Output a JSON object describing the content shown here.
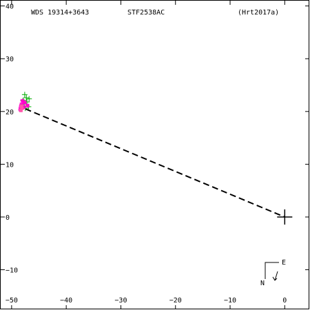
{
  "header": {
    "wds_id": "WDS 19314+3643",
    "discoverer": "STF2538AC",
    "reference": "(Hrt2017a)"
  },
  "compass": {
    "east_label": "E",
    "north_label": "N"
  },
  "colors": {
    "axis": "#000000",
    "orbit_line": "#000000",
    "observations_green": "#00aa00",
    "observations_magenta": "#ff00cc",
    "observations_pink": "#ff55aa",
    "primary_marker": "#000000"
  },
  "chart_data": {
    "type": "scatter",
    "title": "",
    "xlabel": "",
    "ylabel": "",
    "xlim": [
      -52,
      4.5
    ],
    "ylim": [
      -17.5,
      41
    ],
    "x_ticks": [
      -50,
      -40,
      -30,
      -20,
      -10,
      0
    ],
    "y_ticks": [
      -10,
      0,
      10,
      20,
      30,
      40
    ],
    "grid": false,
    "primary": {
      "x": 0,
      "y": 0,
      "marker": "plus"
    },
    "linear_fit": {
      "from": [
        -47.5,
        20.5
      ],
      "to": [
        0,
        0
      ],
      "style": "dashed"
    },
    "series": [
      {
        "marker": "plus",
        "color": "#00aa00",
        "points": [
          [
            -47.6,
            23.2
          ],
          [
            -47.3,
            22.6
          ],
          [
            -47.9,
            22.1
          ],
          [
            -47.2,
            21.8
          ],
          [
            -47.7,
            21.4
          ],
          [
            -46.9,
            20.9
          ],
          [
            -47.5,
            20.6
          ],
          [
            -46.8,
            22.4
          ]
        ]
      },
      {
        "marker": "asterisk",
        "color": "#ff00cc",
        "points": [
          [
            -48.2,
            21.3
          ],
          [
            -47.8,
            20.8
          ],
          [
            -48.4,
            20.4
          ],
          [
            -47.6,
            21.7
          ],
          [
            -48.0,
            22.0
          ],
          [
            -47.1,
            21.1
          ],
          [
            -48.3,
            20.9
          ]
        ]
      },
      {
        "marker": "square",
        "color": "#ff55aa",
        "points": [
          [
            -48.3,
            20.2
          ],
          [
            -48.1,
            20.6
          ],
          [
            -48.2,
            21.0
          ]
        ]
      }
    ]
  }
}
